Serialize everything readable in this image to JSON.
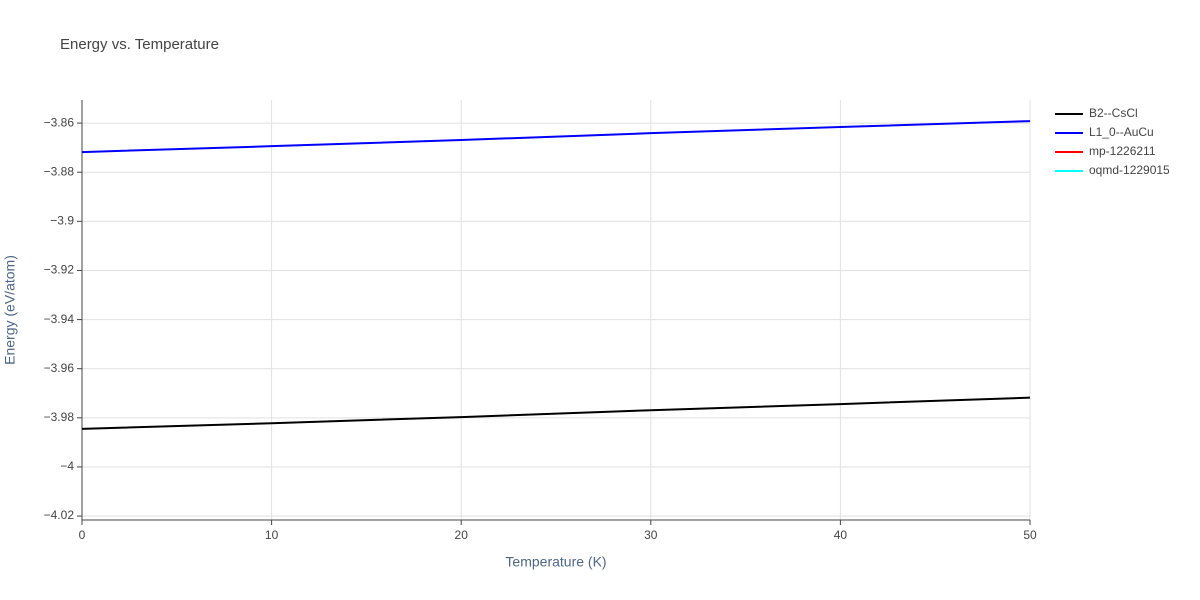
{
  "chart_data": {
    "type": "line",
    "title": "Energy vs. Temperature",
    "x_label": "Temperature (K)",
    "y_label": "Energy (eV/atom)",
    "x": [
      0,
      10,
      20,
      30,
      40,
      50
    ],
    "series": [
      {
        "name": "B2--CsCl",
        "color": "#000000",
        "values": [
          -3.9845,
          -3.9822,
          -3.9797,
          -3.9769,
          -3.9744,
          -3.9718
        ]
      },
      {
        "name": "L1_0--AuCu",
        "color": "#0000ff",
        "values": [
          -3.8718,
          -3.8694,
          -3.8669,
          -3.8641,
          -3.8616,
          -3.8592
        ]
      },
      {
        "name": "mp-1226211",
        "color": "#ff0000",
        "values": [
          null,
          null,
          null,
          null,
          null,
          null
        ]
      },
      {
        "name": "oqmd-1229015",
        "color": "#00ffff",
        "values": [
          null,
          null,
          null,
          null,
          null,
          null
        ]
      }
    ],
    "xlim": [
      0,
      50
    ],
    "xticks": [
      0,
      10,
      20,
      30,
      40,
      50
    ],
    "ylim": [
      -4.0216,
      -3.8506
    ],
    "yticks": [
      {
        "value": -3.86,
        "label": "−3.86"
      },
      {
        "value": -3.88,
        "label": "−3.88"
      },
      {
        "value": -3.9,
        "label": "−3.9"
      },
      {
        "value": -3.92,
        "label": "−3.92"
      },
      {
        "value": -3.94,
        "label": "−3.94"
      },
      {
        "value": -3.96,
        "label": "−3.96"
      },
      {
        "value": -3.98,
        "label": "−3.98"
      },
      {
        "value": -4,
        "label": "−4"
      },
      {
        "value": -4.02,
        "label": "−4.02"
      }
    ],
    "grid": true,
    "legend": "top-right"
  }
}
